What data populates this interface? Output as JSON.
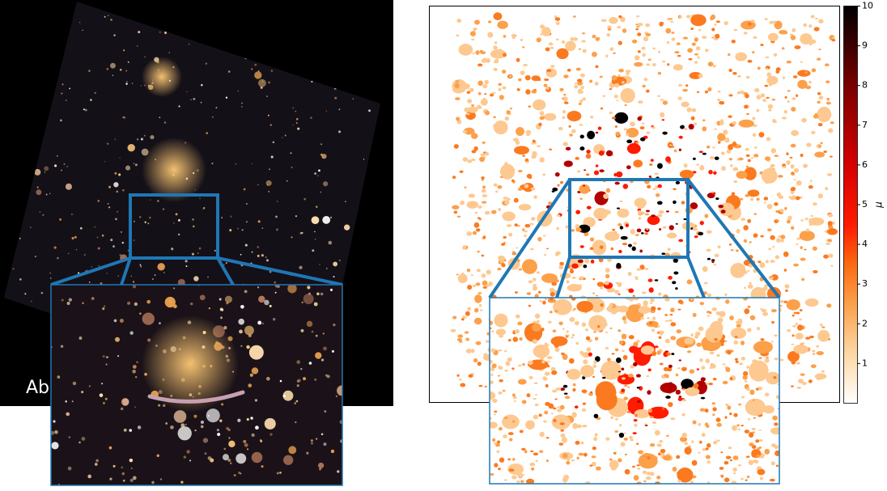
{
  "left_image": {
    "caption": "Ab"
  },
  "colorbar": {
    "label": "μ",
    "limits": [
      0,
      10
    ],
    "ticks": [
      1,
      2,
      3,
      4,
      5,
      6,
      7,
      8,
      9,
      10
    ]
  }
}
